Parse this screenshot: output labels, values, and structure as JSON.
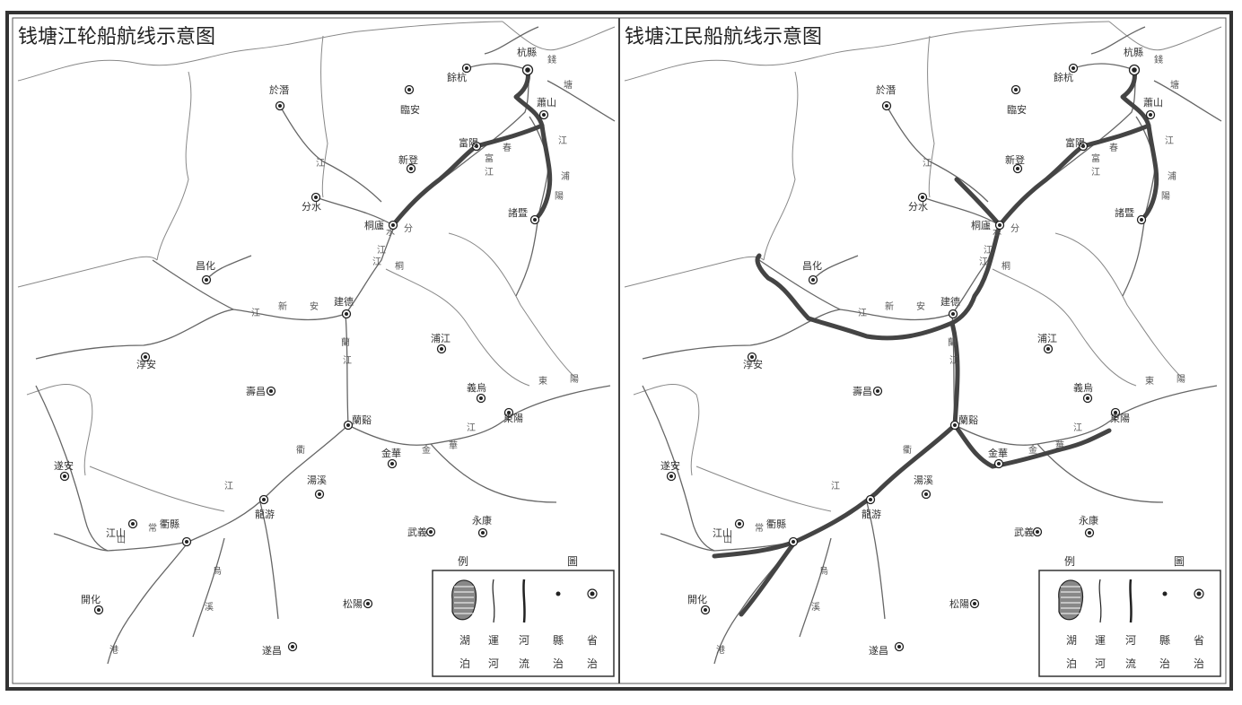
{
  "maps": [
    {
      "title": "钱塘江轮船航线示意图",
      "legend": {
        "heading_left": "例",
        "heading_right": "圖",
        "items": [
          {
            "icon": "lake-icon",
            "label_top": "湖",
            "label_bottom": "泊"
          },
          {
            "icon": "canal-icon",
            "label_top": "運",
            "label_bottom": "河"
          },
          {
            "icon": "river-icon",
            "label_top": "河",
            "label_bottom": "流"
          },
          {
            "icon": "county-seat-icon",
            "label_top": "縣",
            "label_bottom": "治"
          },
          {
            "icon": "provincial-capital-icon",
            "label_top": "省",
            "label_bottom": "治"
          }
        ]
      }
    },
    {
      "title": "钱塘江民船航线示意图",
      "legend": {
        "heading_left": "例",
        "heading_right": "圖",
        "items": [
          {
            "icon": "lake-icon",
            "label_top": "湖",
            "label_bottom": "泊"
          },
          {
            "icon": "canal-icon",
            "label_top": "運",
            "label_bottom": "河"
          },
          {
            "icon": "river-icon",
            "label_top": "河",
            "label_bottom": "流"
          },
          {
            "icon": "county-seat-icon",
            "label_top": "縣",
            "label_bottom": "治"
          },
          {
            "icon": "provincial-capital-icon",
            "label_top": "省",
            "label_bottom": "治"
          }
        ]
      }
    }
  ],
  "places": [
    {
      "name": "杭縣",
      "label": "杭縣",
      "type": "provincial-capital"
    },
    {
      "name": "餘杭",
      "label": "餘杭"
    },
    {
      "name": "臨安",
      "label": "臨安"
    },
    {
      "name": "富陽",
      "label": "富陽"
    },
    {
      "name": "新登",
      "label": "新登"
    },
    {
      "name": "分水",
      "label": "分水"
    },
    {
      "name": "于潛",
      "label": "於潛"
    },
    {
      "name": "昌化",
      "label": "昌化"
    },
    {
      "name": "桐廬",
      "label": "桐廬"
    },
    {
      "name": "諸暨",
      "label": "諸暨"
    },
    {
      "name": "蕭山",
      "label": "蕭山"
    },
    {
      "name": "建德",
      "label": "建德"
    },
    {
      "name": "浦江",
      "label": "浦江"
    },
    {
      "name": "淳安",
      "label": "淳安"
    },
    {
      "name": "遂安",
      "label": "遂安"
    },
    {
      "name": "壽昌",
      "label": "壽昌"
    },
    {
      "name": "蘭谿",
      "label": "蘭谿"
    },
    {
      "name": "義烏",
      "label": "義烏"
    },
    {
      "name": "東陽",
      "label": "東陽"
    },
    {
      "name": "金華",
      "label": "金華"
    },
    {
      "name": "湯溪",
      "label": "湯溪"
    },
    {
      "name": "龍游",
      "label": "龍游"
    },
    {
      "name": "衢縣",
      "label": "衢縣"
    },
    {
      "name": "開化",
      "label": "開化"
    },
    {
      "name": "江山",
      "label": "江山"
    },
    {
      "name": "武義",
      "label": "武義"
    },
    {
      "name": "永康",
      "label": "永康"
    },
    {
      "name": "遂昌",
      "label": "遂昌"
    },
    {
      "name": "松陽",
      "label": "松陽"
    }
  ],
  "river_labels": [
    "錢",
    "塘",
    "江",
    "浦",
    "陽",
    "富",
    "春",
    "江",
    "新",
    "安",
    "江",
    "蘭",
    "江",
    "衢",
    "江",
    "常",
    "山",
    "港",
    "烏",
    "溪",
    "金",
    "華",
    "江",
    "東",
    "陽",
    "江",
    "桐",
    "江",
    "分",
    "水",
    "江"
  ]
}
